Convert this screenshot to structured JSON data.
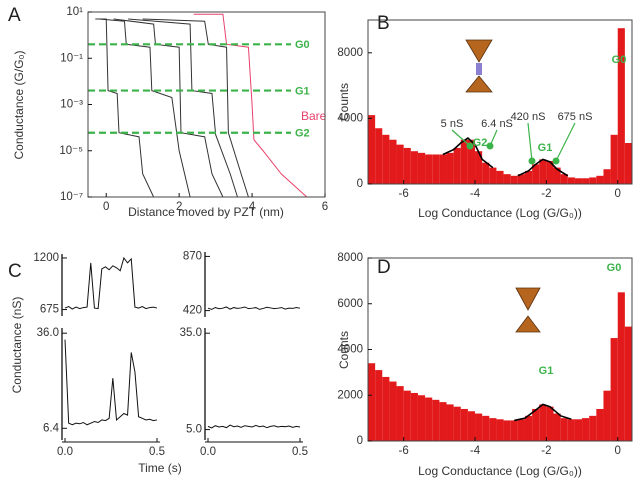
{
  "chart_data": [
    {
      "type": "line",
      "panel": "A",
      "xlabel": "Distance moved by PZT (nm)",
      "ylabel": "Conductance (G/G₀)",
      "log_y": true,
      "xlim": [
        -0.5,
        6
      ],
      "xticks": [
        0,
        2,
        4,
        6
      ],
      "ylim": [
        1e-07,
        10
      ],
      "yticks": [
        {
          "value": 10,
          "label": "10¹"
        },
        {
          "value": 0.1,
          "label": "10⁻¹"
        },
        {
          "value": 0.001,
          "label": "10⁻³"
        },
        {
          "value": 1e-05,
          "label": "10⁻⁵"
        },
        {
          "value": 1e-07,
          "label": "10⁻⁷"
        }
      ],
      "reference_lines": {
        "color": "#3cb34a",
        "labels": [
          "G0",
          "G1",
          "G2"
        ],
        "values": [
          0.4,
          0.004,
          6e-05
        ]
      },
      "series": [
        {
          "color": "#333333",
          "x": [
            -0.3,
            0.0,
            0.05,
            0.3,
            0.35,
            0.9,
            1.0,
            1.3
          ],
          "values": [
            5,
            5,
            0.004,
            0.003,
            6e-05,
            4e-05,
            1e-06,
            1e-07
          ]
        },
        {
          "color": "#333333",
          "x": [
            -0.2,
            0.5,
            0.55,
            1.2,
            1.25,
            1.8,
            2.0,
            2.3
          ],
          "values": [
            5,
            4,
            0.4,
            0.3,
            0.004,
            0.002,
            1e-05,
            1e-07
          ]
        },
        {
          "color": "#333333",
          "x": [
            0.2,
            1.3,
            1.35,
            2.0,
            2.05,
            2.7,
            2.9,
            3.2
          ],
          "values": [
            5,
            3,
            0.4,
            0.3,
            6e-05,
            4e-05,
            1e-06,
            1e-07
          ]
        },
        {
          "color": "#333333",
          "x": [
            0.6,
            2.3,
            2.35,
            2.9,
            3.0,
            3.4,
            3.6
          ],
          "values": [
            5,
            3,
            0.004,
            0.003,
            5e-05,
            1e-06,
            1e-07
          ]
        },
        {
          "color": "#333333",
          "x": [
            1.0,
            2.7,
            2.8,
            3.3,
            3.35,
            3.7,
            3.9
          ],
          "values": [
            5,
            4,
            0.4,
            0.3,
            6e-05,
            1e-06,
            1e-07
          ]
        },
        {
          "name": "Bare",
          "color": "#e8416a",
          "x": [
            2.4,
            3.2,
            3.3,
            3.9,
            4.0,
            4.05,
            4.3,
            4.8,
            5.5
          ],
          "values": [
            8,
            8,
            0.4,
            0.3,
            0.001,
            3e-05,
            1e-05,
            1e-06,
            1e-07
          ]
        }
      ]
    },
    {
      "type": "histogram",
      "panel": "B",
      "xlabel": "Log Conductance (Log (G/G₀))",
      "ylabel": "Counts",
      "color": "#e31a1c",
      "xlim": [
        -7,
        0.4
      ],
      "xticks": [
        -6,
        -4,
        -2,
        0
      ],
      "ylim": [
        0,
        10000
      ],
      "yticks": [
        0,
        4000,
        8000
      ],
      "bins": [
        -7,
        -6.8,
        -6.6,
        -6.4,
        -6.2,
        -6,
        -5.8,
        -5.6,
        -5.4,
        -5.2,
        -5,
        -4.8,
        -4.6,
        -4.4,
        -4.2,
        -4,
        -3.8,
        -3.6,
        -3.4,
        -3.2,
        -3,
        -2.8,
        -2.6,
        -2.4,
        -2.2,
        -2,
        -1.8,
        -1.6,
        -1.4,
        -1.2,
        -1,
        -0.8,
        -0.6,
        -0.4,
        -0.2,
        0,
        0.2,
        0.4
      ],
      "values": [
        4200,
        3400,
        3000,
        2700,
        2400,
        2200,
        2000,
        1900,
        1800,
        1800,
        1800,
        1900,
        2200,
        2700,
        2700,
        2000,
        1300,
        1000,
        800,
        600,
        500,
        600,
        800,
        1200,
        1500,
        1400,
        1000,
        600,
        400,
        350,
        350,
        400,
        500,
        900,
        3000,
        9500,
        2500
      ],
      "fits": [
        {
          "color": "#000000",
          "x": [
            -4.9,
            -4.6,
            -4.4,
            -4.2,
            -4.0,
            -3.8,
            -3.5
          ],
          "values": [
            1800,
            2100,
            2500,
            2800,
            2400,
            1500,
            1000
          ]
        },
        {
          "color": "#000000",
          "x": [
            -2.8,
            -2.5,
            -2.3,
            -2.1,
            -1.9,
            -1.7,
            -1.4
          ],
          "values": [
            500,
            800,
            1200,
            1500,
            1350,
            900,
            500
          ]
        }
      ],
      "annotations": {
        "color": "#3cb34a",
        "labels": [
          "5 nS",
          "6.4 nS",
          "420 nS",
          "675 nS",
          "G2",
          "G1",
          "G0"
        ]
      }
    },
    {
      "type": "line",
      "panel": "C",
      "ylabel": "Conductance (nS)",
      "xlim": [
        0,
        0.5
      ],
      "ylim": [
        650,
        1220
      ],
      "yticks": [
        675,
        1200
      ],
      "series": [
        {
          "color": "#111111",
          "x": [
            0,
            0.02,
            0.04,
            0.06,
            0.08,
            0.1,
            0.12,
            0.14,
            0.16,
            0.18,
            0.2,
            0.22,
            0.24,
            0.26,
            0.28,
            0.3,
            0.32,
            0.34,
            0.36,
            0.38,
            0.4,
            0.42,
            0.44,
            0.46,
            0.48,
            0.5
          ],
          "values": [
            690,
            705,
            680,
            700,
            685,
            695,
            700,
            1150,
            690,
            685,
            1090,
            1110,
            1080,
            1120,
            1100,
            1070,
            1200,
            1150,
            1190,
            700,
            690,
            705,
            685,
            695,
            700,
            690
          ]
        }
      ]
    },
    {
      "type": "line",
      "xlim": [
        0,
        0.5
      ],
      "ylim": [
        400,
        890
      ],
      "yticks": [
        420,
        870
      ],
      "series": [
        {
          "color": "#111111",
          "x": [
            0,
            0.02,
            0.04,
            0.06,
            0.08,
            0.1,
            0.12,
            0.14,
            0.16,
            0.18,
            0.2,
            0.22,
            0.24,
            0.26,
            0.28,
            0.3,
            0.32,
            0.34,
            0.36,
            0.38,
            0.4,
            0.42,
            0.44,
            0.46,
            0.48,
            0.5
          ],
          "values": [
            440,
            430,
            445,
            435,
            440,
            450,
            432,
            445,
            438,
            442,
            450,
            436,
            440,
            445,
            430,
            438,
            448,
            442,
            436,
            440,
            445,
            432,
            440,
            438,
            446,
            440
          ]
        }
      ]
    },
    {
      "type": "line",
      "xlabel": "Time (s)",
      "xlim": [
        0,
        0.5
      ],
      "xticks": [
        {
          "value": 0,
          "label": "0.0"
        },
        0.5
      ],
      "ylim": [
        4,
        37
      ],
      "yticks": [
        6.4,
        {
          "value": 36,
          "label": "36.0"
        }
      ],
      "series": [
        {
          "color": "#111111",
          "x": [
            0,
            0.02,
            0.04,
            0.06,
            0.08,
            0.1,
            0.12,
            0.14,
            0.16,
            0.18,
            0.2,
            0.22,
            0.24,
            0.26,
            0.28,
            0.3,
            0.32,
            0.34,
            0.36,
            0.38,
            0.4,
            0.42,
            0.44,
            0.46,
            0.48,
            0.5
          ],
          "values": [
            34,
            8,
            7.5,
            8,
            7.8,
            8.2,
            7.5,
            8,
            8.5,
            8.2,
            9,
            8.8,
            9.5,
            22,
            9,
            10,
            11,
            10.5,
            30,
            24,
            10,
            9.5,
            9,
            9.2,
            8.8,
            9
          ]
        }
      ]
    },
    {
      "type": "line",
      "xlim": [
        0,
        0.5
      ],
      "xticks": [
        {
          "value": 0,
          "label": "0.0"
        },
        0.5
      ],
      "ylim": [
        3,
        36
      ],
      "yticks": [
        {
          "value": 5,
          "label": "5.0"
        },
        {
          "value": 35,
          "label": "35.0"
        }
      ],
      "series": [
        {
          "color": "#111111",
          "x": [
            0,
            0.02,
            0.04,
            0.06,
            0.08,
            0.1,
            0.12,
            0.14,
            0.16,
            0.18,
            0.2,
            0.22,
            0.24,
            0.26,
            0.28,
            0.3,
            0.32,
            0.34,
            0.36,
            0.38,
            0.4,
            0.42,
            0.44,
            0.46,
            0.48,
            0.5
          ],
          "values": [
            6,
            5.5,
            6.2,
            5.8,
            6,
            5.6,
            6.4,
            5.9,
            6.1,
            5.7,
            6.2,
            6,
            5.8,
            6.3,
            5.9,
            6.1,
            5.6,
            6,
            6.2,
            5.8,
            6,
            5.9,
            6.1,
            5.7,
            6,
            5.8
          ]
        }
      ]
    },
    {
      "type": "histogram",
      "panel": "D",
      "xlabel": "Log Conductance (Log (G/G₀))",
      "ylabel": "Counts",
      "color": "#e31a1c",
      "xlim": [
        -7,
        0.4
      ],
      "xticks": [
        -6,
        -4,
        -2,
        0
      ],
      "ylim": [
        0,
        8000
      ],
      "yticks": [
        0,
        2000,
        4000,
        6000,
        8000
      ],
      "bins": [
        -7,
        -6.8,
        -6.6,
        -6.4,
        -6.2,
        -6,
        -5.8,
        -5.6,
        -5.4,
        -5.2,
        -5,
        -4.8,
        -4.6,
        -4.4,
        -4.2,
        -4,
        -3.8,
        -3.6,
        -3.4,
        -3.2,
        -3,
        -2.8,
        -2.6,
        -2.4,
        -2.2,
        -2,
        -1.8,
        -1.6,
        -1.4,
        -1.2,
        -1,
        -0.8,
        -0.6,
        -0.4,
        -0.2,
        0,
        0.2,
        0.4
      ],
      "values": [
        3400,
        3100,
        2800,
        2600,
        2400,
        2200,
        2100,
        2000,
        1900,
        1800,
        1700,
        1600,
        1500,
        1400,
        1300,
        1200,
        1100,
        1000,
        950,
        900,
        900,
        950,
        1100,
        1400,
        1600,
        1500,
        1200,
        1000,
        950,
        950,
        1000,
        1100,
        1400,
        2200,
        4500,
        6500,
        5000
      ],
      "fits": [
        {
          "color": "#000000",
          "x": [
            -2.9,
            -2.6,
            -2.3,
            -2.1,
            -1.9,
            -1.6,
            -1.3
          ],
          "values": [
            900,
            1000,
            1350,
            1600,
            1500,
            1100,
            950
          ]
        }
      ],
      "annotations": {
        "color": "#3cb34a",
        "labels": [
          "G1",
          "G0"
        ]
      }
    }
  ]
}
